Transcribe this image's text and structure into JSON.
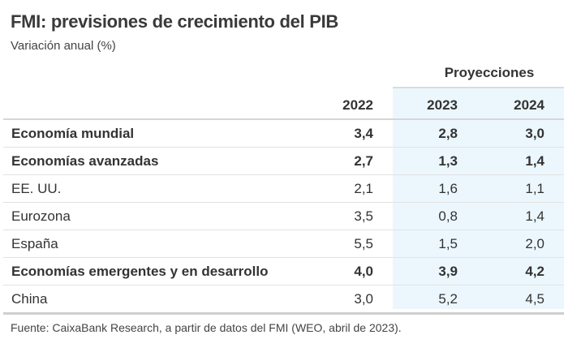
{
  "title": "FMI: previsiones de crecimiento del PIB",
  "subtitle": "Variación anual (%)",
  "group_header": "Proyecciones",
  "columns": [
    "2022",
    "2023",
    "2024"
  ],
  "rows": [
    {
      "label": "Economía mundial",
      "values": [
        "3,4",
        "2,8",
        "3,0"
      ],
      "bold": true
    },
    {
      "label": "Economías avanzadas",
      "values": [
        "2,7",
        "1,3",
        "1,4"
      ],
      "bold": true
    },
    {
      "label": "EE. UU.",
      "values": [
        "2,1",
        "1,6",
        "1,1"
      ],
      "bold": false
    },
    {
      "label": "Eurozona",
      "values": [
        "3,5",
        "0,8",
        "1,4"
      ],
      "bold": false
    },
    {
      "label": "España",
      "values": [
        "5,5",
        "1,5",
        "2,0"
      ],
      "bold": false
    },
    {
      "label": "Economías emergentes y en desarrollo",
      "values": [
        "4,0",
        "3,9",
        "4,2"
      ],
      "bold": true
    },
    {
      "label": "China",
      "values": [
        "3,0",
        "5,2",
        "4,5"
      ],
      "bold": false
    }
  ],
  "footer": "Fuente: CaixaBank Research, a partir de datos del FMI (WEO, abril de 2023).",
  "colors": {
    "projection_shade": "#ecf7fd",
    "text": "#333333"
  }
}
